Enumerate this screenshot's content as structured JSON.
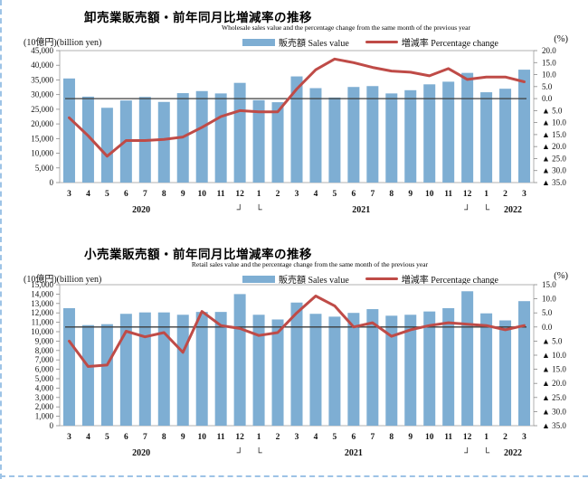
{
  "page": {
    "background": "#ffffff",
    "border_color": "#9dc3e6"
  },
  "legend": {
    "sales_label": "販売額 Sales value",
    "pct_label": "増減率 Percentage change",
    "bar_color": "#7eaed3",
    "line_color": "#bf4b47"
  },
  "chart_data": [
    {
      "type": "bar",
      "title": "卸売業販売額・前年同月比増減率の推移",
      "subtitle": "Wholesale sales value and the percentage change from the same month of the previous year",
      "left_axis_label": "(10億円)(billion yen)",
      "right_axis_label": "(%)",
      "categories": [
        "3",
        "4",
        "5",
        "6",
        "7",
        "8",
        "9",
        "10",
        "11",
        "12",
        "1",
        "2",
        "3",
        "4",
        "5",
        "6",
        "7",
        "8",
        "9",
        "10",
        "11",
        "12",
        "1",
        "2",
        "3"
      ],
      "series": [
        {
          "name": "販売額 Sales value",
          "type": "bar",
          "axis": "left",
          "values": [
            35500,
            29300,
            25500,
            28000,
            29200,
            27500,
            30500,
            31200,
            30400,
            34000,
            28100,
            27400,
            36200,
            32200,
            29000,
            32600,
            32900,
            30400,
            31500,
            33500,
            34400,
            37400,
            30800,
            32000,
            38500
          ]
        },
        {
          "name": "増減率 Percentage change",
          "type": "line",
          "axis": "right",
          "values": [
            -8,
            -15.5,
            -24,
            -17.5,
            -17.5,
            -17,
            -16,
            -12,
            -7.5,
            -5,
            -5.5,
            -5.5,
            4,
            12,
            16.5,
            15,
            13,
            11.5,
            11,
            9.5,
            12.5,
            8,
            9,
            9,
            7
          ]
        }
      ],
      "left_axis": {
        "min": 0,
        "max": 45000,
        "step": 5000
      },
      "right_axis": {
        "min": -35,
        "max": 20,
        "step": 5,
        "negative_marker": "▲"
      },
      "year_row": [
        {
          "text": "2020",
          "index": 3.8
        },
        {
          "text": "┘",
          "index": 9
        },
        {
          "text": "└",
          "index": 10
        },
        {
          "text": "2021",
          "index": 15.4
        },
        {
          "text": "┘",
          "index": 21
        },
        {
          "text": "└",
          "index": 22
        },
        {
          "text": "2022",
          "index": 23.4
        }
      ],
      "zero_line": true,
      "grid": false,
      "legend_position": "top"
    },
    {
      "type": "bar",
      "title": "小売業販売額・前年同月比増減率の推移",
      "subtitle": "Retail sales value and the percentage change from the same month of the previous year",
      "left_axis_label": "(10億円)(billion yen)",
      "right_axis_label": "(%)",
      "categories": [
        "3",
        "4",
        "5",
        "6",
        "7",
        "8",
        "9",
        "10",
        "11",
        "12",
        "1",
        "2",
        "3",
        "4",
        "5",
        "6",
        "7",
        "8",
        "9",
        "10",
        "11",
        "12",
        "1",
        "2",
        "3"
      ],
      "series": [
        {
          "name": "販売額 Sales value",
          "type": "bar",
          "axis": "left",
          "values": [
            12500,
            10700,
            10800,
            11900,
            12050,
            12050,
            11800,
            12100,
            12100,
            14000,
            11800,
            11300,
            13100,
            11900,
            11600,
            12000,
            12400,
            11700,
            11800,
            12150,
            12500,
            14300,
            11950,
            11200,
            13250
          ]
        },
        {
          "name": "増減率 Percentage change",
          "type": "line",
          "axis": "right",
          "values": [
            -5,
            -14,
            -13.5,
            -1.5,
            -3.5,
            -2,
            -9,
            5.5,
            0.5,
            -0.5,
            -3,
            -2,
            5,
            11,
            7.5,
            0,
            1.5,
            -3.3,
            -1,
            0.5,
            1.5,
            1,
            0.5,
            -1,
            0.5
          ]
        }
      ],
      "left_axis": {
        "min": 0,
        "max": 15000,
        "step": 1000
      },
      "right_axis": {
        "min": -35,
        "max": 15,
        "step": 5,
        "negative_marker": "▲"
      },
      "year_row": [
        {
          "text": "2020",
          "index": 3.8
        },
        {
          "text": "┘",
          "index": 9
        },
        {
          "text": "└",
          "index": 10
        },
        {
          "text": "2021",
          "index": 15.0
        },
        {
          "text": "┘",
          "index": 21
        },
        {
          "text": "└",
          "index": 22
        },
        {
          "text": "2022",
          "index": 23.4
        }
      ],
      "zero_line": true,
      "grid": false,
      "legend_position": "top"
    }
  ]
}
